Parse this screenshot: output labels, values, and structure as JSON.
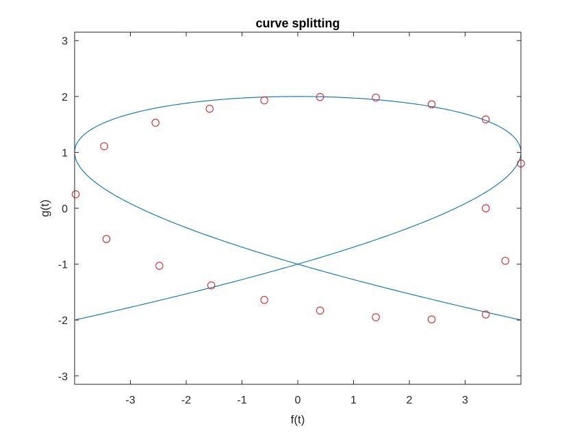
{
  "chart_data": {
    "type": "line",
    "title": "curve splitting",
    "xlabel": "f(t)",
    "ylabel": "g(t)",
    "xlim": [
      -4,
      4
    ],
    "ylim": [
      -3.15,
      3.15
    ],
    "xticks": [
      -3,
      -2,
      -1,
      0,
      1,
      2,
      3
    ],
    "xtick_labels": [
      "-3",
      "-2",
      "-1",
      "0",
      "1",
      "2",
      "3"
    ],
    "yticks": [
      -3,
      -2,
      -1,
      0,
      1,
      2,
      3
    ],
    "ytick_labels": [
      "-3",
      "-2",
      "-1",
      "0",
      "1",
      "2",
      "3"
    ],
    "grid": false,
    "legend": "none",
    "series": [
      {
        "kind": "curve",
        "style": "line",
        "color": "#0072BD",
        "x_expr": "4*sin(3*t)",
        "y_expr": "2*cos(2*t)",
        "t_range": [
          0,
          6.2832
        ]
      },
      {
        "kind": "points",
        "style": "marker",
        "marker": "circle",
        "color": "#D62728",
        "points": [
          {
            "x": -3.98,
            "y": 0.25
          },
          {
            "x": -3.47,
            "y": 1.11
          },
          {
            "x": -3.43,
            "y": -0.55
          },
          {
            "x": -2.55,
            "y": 1.53
          },
          {
            "x": -2.48,
            "y": -1.03
          },
          {
            "x": -1.58,
            "y": 1.78
          },
          {
            "x": -1.55,
            "y": -1.38
          },
          {
            "x": -0.6,
            "y": 1.93
          },
          {
            "x": -0.6,
            "y": -1.64
          },
          {
            "x": 0.4,
            "y": 1.99
          },
          {
            "x": 0.4,
            "y": -1.83
          },
          {
            "x": 1.4,
            "y": 1.98
          },
          {
            "x": 1.4,
            "y": -1.95
          },
          {
            "x": 2.4,
            "y": 1.86
          },
          {
            "x": 2.4,
            "y": -1.99
          },
          {
            "x": 3.37,
            "y": 1.59
          },
          {
            "x": 3.37,
            "y": 0.0
          },
          {
            "x": 3.37,
            "y": -1.9
          },
          {
            "x": 3.72,
            "y": -0.94
          },
          {
            "x": 4.0,
            "y": 0.8
          }
        ]
      }
    ]
  }
}
